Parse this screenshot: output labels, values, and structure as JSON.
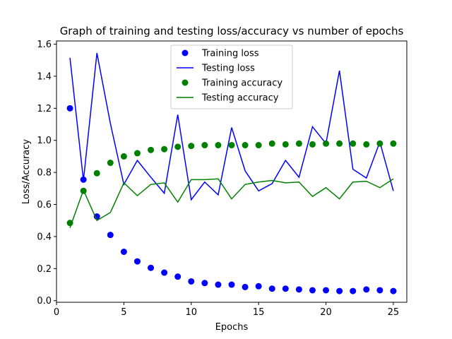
{
  "chart_data": {
    "type": "line",
    "title": "Graph of training and testing loss/accuracy vs number of epochs",
    "xlabel": "Epochs",
    "ylabel": "Loss/Accuracy",
    "xlim": [
      0,
      26
    ],
    "ylim": [
      -0.01,
      1.62
    ],
    "xticks": [
      0,
      5,
      10,
      15,
      20,
      25
    ],
    "yticks": [
      0.0,
      0.2,
      0.4,
      0.6,
      0.8,
      1.0,
      1.2,
      1.4,
      1.6
    ],
    "ytick_labels": [
      "0.0",
      "0.2",
      "0.4",
      "0.6",
      "0.8",
      "1.0",
      "1.2",
      "1.4",
      "1.6"
    ],
    "grid": false,
    "legend_placement": "upper center",
    "x": [
      1,
      2,
      3,
      4,
      5,
      6,
      7,
      8,
      9,
      10,
      11,
      12,
      13,
      14,
      15,
      16,
      17,
      18,
      19,
      20,
      21,
      22,
      23,
      24,
      25
    ],
    "series": [
      {
        "name": "Training loss",
        "style": "markers",
        "color": "#0000ff",
        "values": [
          1.2,
          0.755,
          0.525,
          0.41,
          0.305,
          0.245,
          0.205,
          0.175,
          0.15,
          0.12,
          0.11,
          0.1,
          0.1,
          0.085,
          0.09,
          0.075,
          0.075,
          0.07,
          0.065,
          0.065,
          0.06,
          0.06,
          0.07,
          0.065,
          0.06
        ]
      },
      {
        "name": "Testing loss",
        "style": "line",
        "color": "#0000ff",
        "values": [
          1.515,
          0.75,
          1.545,
          1.105,
          0.725,
          0.875,
          0.77,
          0.67,
          1.16,
          0.63,
          0.74,
          0.66,
          1.08,
          0.81,
          0.685,
          0.73,
          0.875,
          0.77,
          1.085,
          0.98,
          1.435,
          0.82,
          0.765,
          0.99,
          0.685
        ]
      },
      {
        "name": "Training accuracy",
        "style": "markers",
        "color": "#008000",
        "values": [
          0.485,
          0.685,
          0.795,
          0.86,
          0.9,
          0.92,
          0.94,
          0.945,
          0.96,
          0.965,
          0.97,
          0.97,
          0.97,
          0.97,
          0.97,
          0.98,
          0.975,
          0.98,
          0.975,
          0.98,
          0.98,
          0.98,
          0.975,
          0.98,
          0.98
        ]
      },
      {
        "name": "Testing accuracy",
        "style": "line",
        "color": "#008000",
        "values": [
          0.455,
          0.69,
          0.5,
          0.55,
          0.735,
          0.655,
          0.725,
          0.735,
          0.615,
          0.755,
          0.755,
          0.76,
          0.635,
          0.725,
          0.74,
          0.75,
          0.735,
          0.74,
          0.65,
          0.705,
          0.635,
          0.74,
          0.745,
          0.705,
          0.76
        ]
      }
    ]
  }
}
